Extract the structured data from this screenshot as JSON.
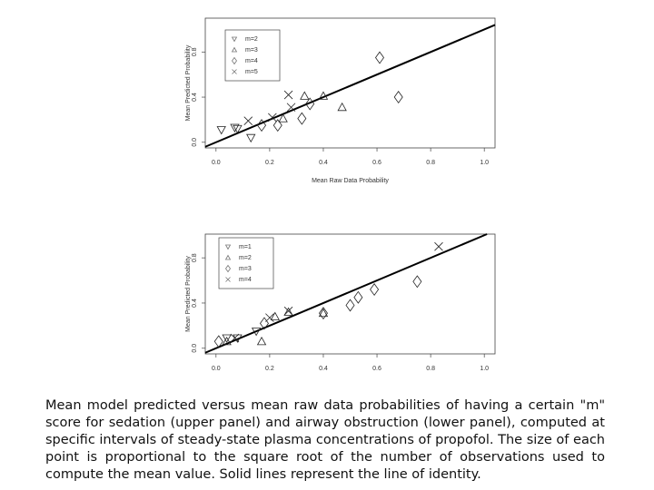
{
  "chart_data": [
    {
      "type": "scatter",
      "x_label": "Mean Raw Data Probability",
      "y_label": "Mean Predicted Probability",
      "xlim": [
        -0.04,
        1.04
      ],
      "ylim": [
        -0.05,
        1.1
      ],
      "xticks": [
        {
          "value": 0,
          "label": "0.0"
        },
        0.2,
        0.4,
        0.6,
        0.8,
        {
          "value": 1,
          "label": "1.0"
        }
      ],
      "yticks": [
        {
          "value": 0,
          "label": "0.0"
        },
        0.4,
        0.8
      ],
      "identity_line": true,
      "series": [
        {
          "name": "m=2",
          "marker": "triangle-down",
          "color": "#222",
          "x": [
            0.02,
            0.07,
            0.08,
            0.13
          ],
          "values": [
            0.11,
            0.13,
            0.12,
            0.04
          ]
        },
        {
          "name": "m=3",
          "marker": "triangle-up",
          "color": "#222",
          "x": [
            0.25,
            0.33,
            0.4,
            0.47
          ],
          "values": [
            0.21,
            0.41,
            0.41,
            0.31
          ]
        },
        {
          "name": "m=4",
          "marker": "diamond",
          "color": "#222",
          "x": [
            0.17,
            0.23,
            0.32,
            0.35,
            0.61,
            0.68
          ],
          "values": [
            0.15,
            0.15,
            0.21,
            0.34,
            0.75,
            0.4
          ]
        },
        {
          "name": "m=5",
          "marker": "cross",
          "color": "#222",
          "x": [
            0.12,
            0.21,
            0.27,
            0.28
          ],
          "values": [
            0.19,
            0.22,
            0.42,
            0.31
          ]
        }
      ]
    },
    {
      "type": "scatter",
      "y_label": "Mean Predicted Probability",
      "xlim": [
        -0.04,
        1.04
      ],
      "ylim": [
        -0.05,
        1.01
      ],
      "xticks": [
        {
          "value": 0,
          "label": "0.0"
        },
        0.2,
        0.4,
        0.6,
        0.8,
        {
          "value": 1,
          "label": "1.0"
        }
      ],
      "yticks": [
        {
          "value": 0,
          "label": "0.0"
        },
        0.4,
        0.8
      ],
      "identity_line": true,
      "series": [
        {
          "name": "m=1",
          "marker": "triangle-down",
          "color": "#222",
          "x": [
            0.04,
            0.08,
            0.15
          ],
          "values": [
            0.09,
            0.09,
            0.15
          ]
        },
        {
          "name": "m=2",
          "marker": "triangle-up",
          "color": "#222",
          "x": [
            0.04,
            0.17,
            0.22,
            0.27,
            0.4
          ],
          "values": [
            0.06,
            0.06,
            0.28,
            0.32,
            0.31
          ]
        },
        {
          "name": "m=3",
          "marker": "diamond",
          "color": "#222",
          "x": [
            0.01,
            0.18,
            0.4,
            0.5,
            0.53,
            0.59,
            0.75
          ],
          "values": [
            0.06,
            0.22,
            0.31,
            0.38,
            0.45,
            0.52,
            0.59
          ]
        },
        {
          "name": "m=4",
          "marker": "cross",
          "color": "#222",
          "x": [
            0.07,
            0.2,
            0.27,
            0.83
          ],
          "values": [
            0.09,
            0.27,
            0.33,
            0.9
          ]
        }
      ]
    }
  ],
  "caption": "Mean model predicted versus mean raw data probabilities of having a certain \"m\" score for sedation (upper panel) and airway obstruction (lower panel), computed at specific intervals of steady-state plasma concentrations of propofol. The size of each point is proportional to the square root of the number of observations used to compute the mean value. Solid lines represent the line of identity."
}
